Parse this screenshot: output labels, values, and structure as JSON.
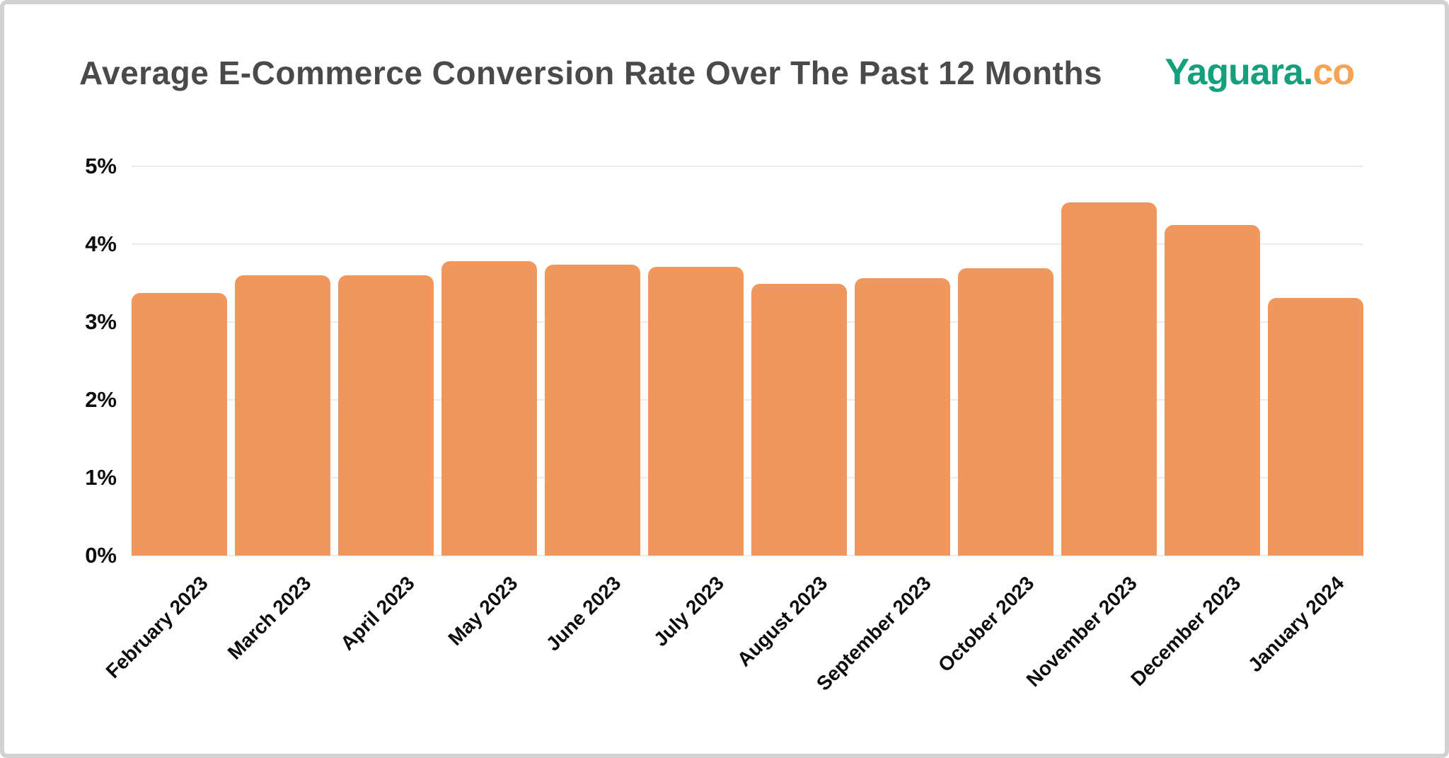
{
  "header": {
    "title": "Average E-Commerce Conversion Rate Over The Past 12 Months",
    "logo": {
      "primary": "Yaguara.",
      "secondary": "co",
      "primary_color": "#14a07c",
      "secondary_color": "#f8a254"
    }
  },
  "chart_data": {
    "type": "bar",
    "title": "Average E-Commerce Conversion Rate Over The Past 12 Months",
    "categories": [
      "February 2023",
      "March 2023",
      "April 2023",
      "May 2023",
      "June 2023",
      "July 2023",
      "August 2023",
      "September 2023",
      "October 2023",
      "November 2023",
      "December 2023",
      "January 2024"
    ],
    "values": [
      3.37,
      3.6,
      3.6,
      3.78,
      3.74,
      3.71,
      3.49,
      3.56,
      3.69,
      4.54,
      4.25,
      3.31
    ],
    "unit": "%",
    "xlabel": "",
    "ylabel": "",
    "y_tick_labels": [
      "5%",
      "4%",
      "3%",
      "2%",
      "1%",
      "0%"
    ],
    "ylim": [
      0,
      5
    ],
    "grid": true,
    "legend": "none",
    "bar_color": "#f0975e",
    "gridline_color": "#ebebeb",
    "x_tick_rotation_deg": -45
  }
}
